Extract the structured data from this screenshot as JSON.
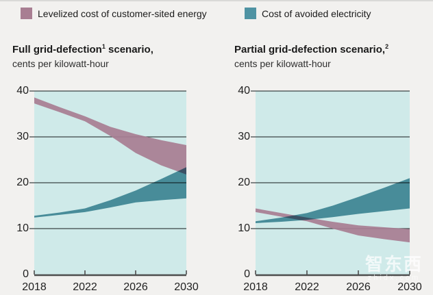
{
  "page": {
    "background": "#f2f1ef"
  },
  "legend": {
    "items": [
      {
        "label": "Levelized cost of customer-sited energy",
        "color": "#a87e92"
      },
      {
        "label": "Cost of avoided electricity",
        "color": "#4f93a3"
      }
    ]
  },
  "charts": [
    {
      "title_pre": "Full grid-defection",
      "title_sup": "1",
      "title_post": " scenario,",
      "subtitle": "cents per kilowatt-hour"
    },
    {
      "title_pre": "Partial grid-defection scenario,",
      "title_sup": "2",
      "title_post": "",
      "subtitle": "cents per kilowatt-hour"
    }
  ],
  "watermark": {
    "text": "智东西",
    "domain": "zhidx.com"
  },
  "chart_data": [
    {
      "type": "area",
      "title": "Full grid-defection scenario",
      "subtitle": "cents per kilowatt-hour",
      "xlabel": "",
      "ylabel": "cents per kilowatt-hour",
      "xlim": [
        2018,
        2030
      ],
      "ylim": [
        0,
        40
      ],
      "x_ticks": [
        2018,
        2022,
        2026,
        2030
      ],
      "y_ticks": [
        0,
        10,
        20,
        30,
        40
      ],
      "grid": true,
      "plot_bg": "#cfeae9",
      "x": [
        2018,
        2020,
        2022,
        2024,
        2026,
        2028,
        2030
      ],
      "series": [
        {
          "name": "Levelized cost of customer-sited energy",
          "color": "#a87e92",
          "upper": [
            38.6,
            36.5,
            34.5,
            32.2,
            30.6,
            29.3,
            28.2
          ],
          "lower": [
            37.3,
            35.4,
            33.4,
            30.2,
            26.5,
            23.8,
            21.8
          ]
        },
        {
          "name": "Cost of avoided electricity",
          "color": "#4f93a3",
          "upper": [
            12.8,
            13.5,
            14.4,
            16.2,
            18.3,
            20.8,
            23.4
          ],
          "lower": [
            12.4,
            13.0,
            13.6,
            14.6,
            15.7,
            16.2,
            16.6
          ]
        }
      ]
    },
    {
      "type": "area",
      "title": "Partial grid-defection scenario",
      "subtitle": "cents per kilowatt-hour",
      "xlabel": "",
      "ylabel": "cents per kilowatt-hour",
      "xlim": [
        2018,
        2030
      ],
      "ylim": [
        0,
        40
      ],
      "x_ticks": [
        2018,
        2022,
        2026,
        2030
      ],
      "y_ticks": [
        0,
        10,
        20,
        30,
        40
      ],
      "grid": true,
      "plot_bg": "#cfeae9",
      "x": [
        2018,
        2020,
        2022,
        2024,
        2026,
        2028,
        2030
      ],
      "series": [
        {
          "name": "Levelized cost of customer-sited energy",
          "color": "#a87e92",
          "upper": [
            14.4,
            13.4,
            12.4,
            11.5,
            10.7,
            10.3,
            9.9
          ],
          "lower": [
            13.6,
            12.6,
            11.6,
            10.0,
            8.5,
            7.7,
            7.0
          ]
        },
        {
          "name": "Cost of avoided electricity",
          "color": "#4f93a3",
          "upper": [
            11.6,
            12.4,
            13.4,
            15.0,
            16.9,
            18.9,
            21.0
          ],
          "lower": [
            11.2,
            11.5,
            11.9,
            12.5,
            13.2,
            13.8,
            14.4
          ]
        }
      ]
    }
  ]
}
